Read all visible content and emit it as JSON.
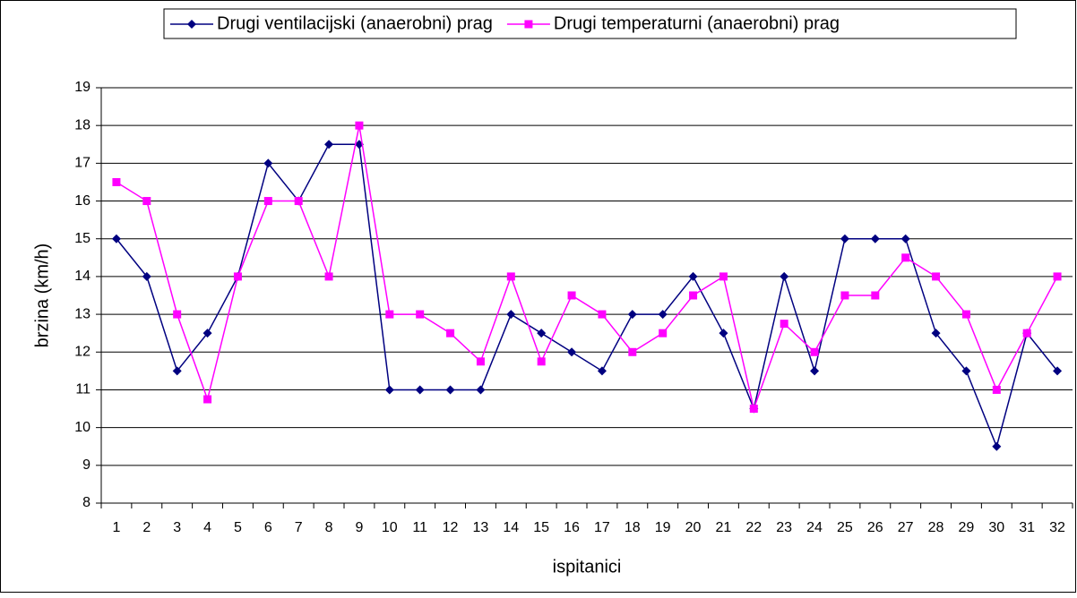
{
  "chart_data": {
    "type": "line",
    "x_label": "ispitanici",
    "y_label": "brzina (km/h)",
    "categories": [
      "1",
      "2",
      "3",
      "4",
      "5",
      "6",
      "7",
      "8",
      "9",
      "10",
      "11",
      "12",
      "13",
      "14",
      "15",
      "16",
      "17",
      "18",
      "19",
      "20",
      "21",
      "22",
      "23",
      "24",
      "25",
      "26",
      "27",
      "28",
      "29",
      "30",
      "31",
      "32"
    ],
    "series": [
      {
        "name": "Drugi ventilacijski (anaerobni) prag",
        "color": "#000080",
        "marker": "diamond",
        "values": [
          15,
          14,
          11.5,
          12.5,
          14,
          17,
          16,
          17.5,
          17.5,
          11,
          11,
          11,
          11,
          13,
          12.5,
          12,
          11.5,
          13,
          13,
          14,
          12.5,
          10.5,
          14,
          11.5,
          15,
          15,
          15,
          12.5,
          11.5,
          9.5,
          12.5,
          11.5
        ]
      },
      {
        "name": "Drugi temperaturni (anaerobni) prag",
        "color": "#ff00ff",
        "marker": "square",
        "values": [
          16.5,
          16,
          13,
          10.75,
          14,
          16,
          16,
          14,
          18,
          13,
          13,
          12.5,
          11.75,
          14,
          11.75,
          13.5,
          13,
          12,
          12.5,
          13.5,
          14,
          10.5,
          12.75,
          12,
          13.5,
          13.5,
          14.5,
          14,
          13,
          11,
          12.5,
          14
        ]
      }
    ],
    "ylim": [
      8,
      19
    ],
    "yticks": [
      8,
      9,
      10,
      11,
      12,
      13,
      14,
      15,
      16,
      17,
      18,
      19
    ],
    "grid": true,
    "legend": "top"
  }
}
